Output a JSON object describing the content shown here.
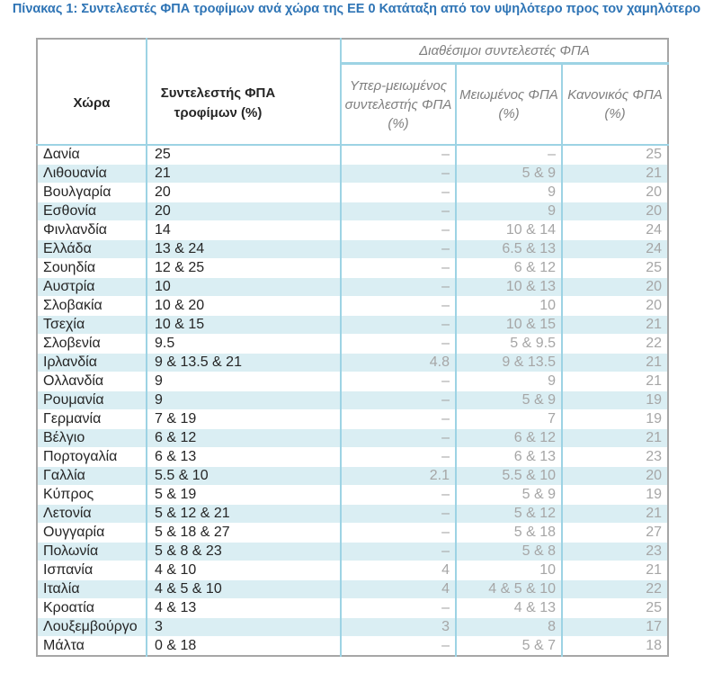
{
  "title": "Πίνακας 1: Συντελεστές ΦΠΑ τροφίμων ανά χώρα της ΕΕ 0 Κατάταξη από τον υψηλότερο προς τον χαμηλότερο",
  "header": {
    "group_label": "Διαθέσιμοι συντελεστές ΦΠΑ",
    "country": "Χώρα",
    "food_rate": "Συντελεστής ΦΠΑ τροφίμων (%)",
    "super_reduced": "Υπερ-μειωμένος συντελεστής ΦΠΑ (%)",
    "reduced": "Μειωμένος ΦΠΑ (%)",
    "standard": "Κανονικός ΦΠΑ (%)"
  },
  "rows": [
    {
      "country": "Δανία",
      "food": "25",
      "super": "–",
      "reduced": "–",
      "standard": "25"
    },
    {
      "country": "Λιθουανία",
      "food": "21",
      "super": "–",
      "reduced": "5 & 9",
      "standard": "21"
    },
    {
      "country": "Βουλγαρία",
      "food": "20",
      "super": "–",
      "reduced": "9",
      "standard": "20"
    },
    {
      "country": "Εσθονία",
      "food": "20",
      "super": "–",
      "reduced": "9",
      "standard": "20"
    },
    {
      "country": "Φινλανδία",
      "food": "14",
      "super": "–",
      "reduced": "10 & 14",
      "standard": "24"
    },
    {
      "country": "Ελλάδα",
      "food": "13 & 24",
      "super": "–",
      "reduced": "6.5 & 13",
      "standard": "24"
    },
    {
      "country": "Σουηδία",
      "food": "12 & 25",
      "super": "–",
      "reduced": "6 & 12",
      "standard": "25"
    },
    {
      "country": "Αυστρία",
      "food": "10",
      "super": "–",
      "reduced": "10 & 13",
      "standard": "20"
    },
    {
      "country": "Σλοβακία",
      "food": "10 & 20",
      "super": "–",
      "reduced": "10",
      "standard": "20"
    },
    {
      "country": "Τσεχία",
      "food": "10 & 15",
      "super": "–",
      "reduced": "10 & 15",
      "standard": "21"
    },
    {
      "country": "Σλοβενία",
      "food": "9.5",
      "super": "–",
      "reduced": "5 & 9.5",
      "standard": "22"
    },
    {
      "country": "Ιρλανδία",
      "food": "9 & 13.5 & 21",
      "super": "4.8",
      "reduced": "9 & 13.5",
      "standard": "21"
    },
    {
      "country": "Ολλανδία",
      "food": "9",
      "super": "–",
      "reduced": "9",
      "standard": "21"
    },
    {
      "country": "Ρουμανία",
      "food": "9",
      "super": "–",
      "reduced": "5 & 9",
      "standard": "19"
    },
    {
      "country": "Γερμανία",
      "food": "7 & 19",
      "super": "–",
      "reduced": "7",
      "standard": "19"
    },
    {
      "country": "Βέλγιο",
      "food": "6 & 12",
      "super": "–",
      "reduced": "6 & 12",
      "standard": "21"
    },
    {
      "country": "Πορτογαλία",
      "food": "6 & 13",
      "super": "–",
      "reduced": "6 & 13",
      "standard": "23"
    },
    {
      "country": "Γαλλία",
      "food": "5.5 & 10",
      "super": "2.1",
      "reduced": "5.5 & 10",
      "standard": "20"
    },
    {
      "country": "Κύπρος",
      "food": "5 & 19",
      "super": "–",
      "reduced": "5 & 9",
      "standard": "19"
    },
    {
      "country": "Λετονία",
      "food": "5 & 12 & 21",
      "super": "–",
      "reduced": "5 & 12",
      "standard": "21"
    },
    {
      "country": "Ουγγαρία",
      "food": "5 & 18 & 27",
      "super": "–",
      "reduced": "5 & 18",
      "standard": "27"
    },
    {
      "country": "Πολωνία",
      "food": "5 & 8 & 23",
      "super": "–",
      "reduced": "5 & 8",
      "standard": "23"
    },
    {
      "country": "Ισπανία",
      "food": "4 & 10",
      "super": "4",
      "reduced": "10",
      "standard": "21"
    },
    {
      "country": "Ιταλία",
      "food": "4 & 5 & 10",
      "super": "4",
      "reduced": "4 & 5 & 10",
      "standard": "22"
    },
    {
      "country": "Κροατία",
      "food": "4 & 13",
      "super": "–",
      "reduced": "4 & 13",
      "standard": "25"
    },
    {
      "country": "Λουξεμβούργο",
      "food": "3",
      "super": "3",
      "reduced": "8",
      "standard": "17"
    },
    {
      "country": "Μάλτα",
      "food": "0 & 18",
      "super": "–",
      "reduced": "5 & 7",
      "standard": "18"
    }
  ]
}
